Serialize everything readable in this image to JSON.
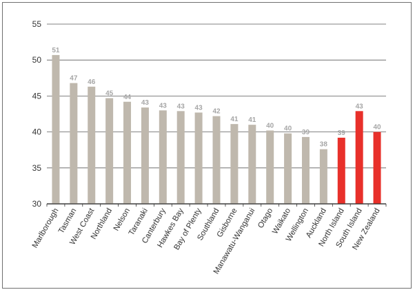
{
  "chart_data": {
    "type": "bar",
    "title": "",
    "xlabel": "",
    "ylabel": "",
    "ylim": [
      30,
      55
    ],
    "yticks": [
      30,
      35,
      40,
      45,
      50,
      55
    ],
    "grid": true,
    "categories": [
      "Marlborough",
      "Tasman",
      "West Coast",
      "Northland",
      "Nelson",
      "Taranaki",
      "Canterbury",
      "Hawkes Bay",
      "Bay of Plenty",
      "Southland",
      "Gisborne",
      "Manawatu-Wanganui",
      "Otago",
      "Waikato",
      "Wellington",
      "Auckland",
      "North Island",
      "South Island",
      "New Zealand"
    ],
    "values": [
      50.7,
      46.8,
      46.3,
      44.7,
      44.2,
      43.4,
      43.0,
      42.9,
      42.7,
      42.2,
      41.1,
      41.0,
      40.2,
      39.8,
      39.3,
      37.6,
      39.2,
      42.9,
      40.0
    ],
    "data_labels": [
      "51",
      "47",
      "46",
      "45",
      "44",
      "43",
      "43",
      "43",
      "43",
      "42",
      "41",
      "41",
      "40",
      "40",
      "39",
      "38",
      "39",
      "43",
      "40"
    ],
    "highlight_categories": [
      "North Island",
      "South Island",
      "New Zealand"
    ],
    "colors": {
      "bar": "#bfb8ad",
      "highlight": "#e8302a",
      "grid": "#595959",
      "label": "#a6a6a6"
    }
  }
}
